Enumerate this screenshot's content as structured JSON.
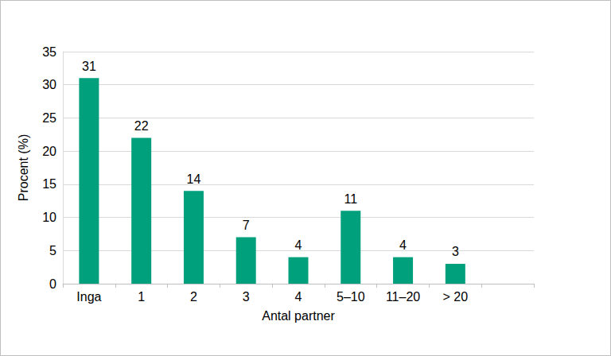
{
  "chart_data": {
    "type": "bar",
    "x_label": "Antal partner",
    "y_label": "Procent (%)",
    "categories": [
      "Inga",
      "1",
      "2",
      "3",
      "4",
      "5–10",
      "11–20",
      "> 20",
      null
    ],
    "values": [
      31,
      22,
      14,
      7,
      4,
      11,
      4,
      3,
      null
    ],
    "color": "#00a07d",
    "ylim": [
      0,
      35
    ],
    "yticks": [
      0,
      5,
      10,
      15,
      20,
      25,
      30,
      35
    ],
    "grid": true,
    "data_labels": true
  }
}
